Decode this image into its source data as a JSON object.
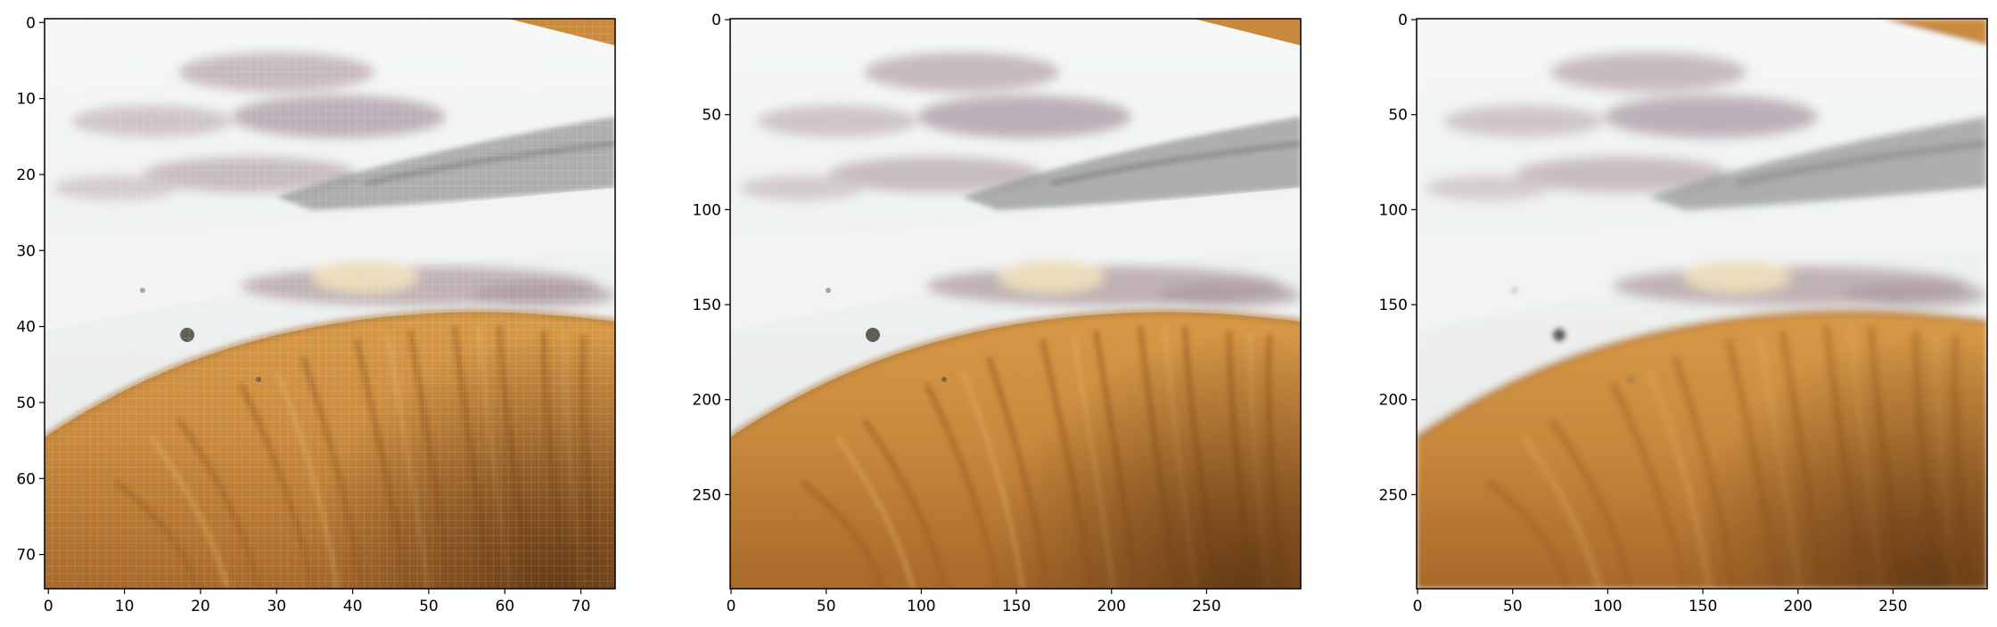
{
  "figure": {
    "panels": [
      {
        "name": "panel-low-resolution",
        "x_ticks": [
          "0",
          "10",
          "20",
          "30",
          "40",
          "50",
          "60",
          "70"
        ],
        "y_ticks": [
          "0",
          "10",
          "20",
          "30",
          "40",
          "50",
          "60",
          "70"
        ],
        "x_tick_values": [
          0,
          10,
          20,
          30,
          40,
          50,
          60,
          70
        ],
        "y_tick_values": [
          0,
          10,
          20,
          30,
          40,
          50,
          60,
          70
        ],
        "extent": [
          75,
          75
        ],
        "pixelated": true
      },
      {
        "name": "panel-high-resolution",
        "x_ticks": [
          "0",
          "50",
          "100",
          "150",
          "200",
          "250"
        ],
        "y_ticks": [
          "0",
          "50",
          "100",
          "150",
          "200",
          "250"
        ],
        "x_tick_values": [
          0,
          50,
          100,
          150,
          200,
          250
        ],
        "y_tick_values": [
          0,
          50,
          100,
          150,
          200,
          250
        ],
        "extent": [
          300,
          300
        ],
        "pixelated": false
      },
      {
        "name": "panel-upscaled",
        "x_ticks": [
          "0",
          "50",
          "100",
          "150",
          "200",
          "250"
        ],
        "y_ticks": [
          "0",
          "50",
          "100",
          "150",
          "200",
          "250"
        ],
        "x_tick_values": [
          0,
          50,
          100,
          150,
          200,
          250
        ],
        "y_tick_values": [
          0,
          50,
          100,
          150,
          200,
          250
        ],
        "extent": [
          300,
          300
        ],
        "pixelated": false
      }
    ],
    "colors": {
      "sky_white": "#f3f6f6",
      "mauve_shadow": "#b9aab0",
      "grey_ridge": "#8f9290",
      "cream_highlight": "#e9d9b8",
      "gill_orange": "#c98a3e",
      "gill_dark": "#8a5520",
      "gill_light": "#dca55a"
    }
  }
}
